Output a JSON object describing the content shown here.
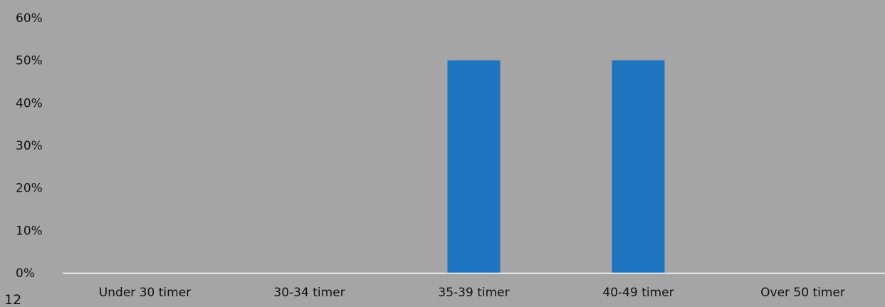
{
  "slide_number": "12",
  "colors": {
    "background": "#a5a5a5",
    "bar": "#1f74bf",
    "axis": "#ffffff",
    "text": "#111111"
  },
  "chart_data": {
    "type": "bar",
    "categories": [
      "Under 30 timer",
      "30-34 timer",
      "35-39 timer",
      "40-49 timer",
      "Over 50 timer"
    ],
    "values": [
      0,
      0,
      50,
      50,
      0
    ],
    "y_ticks": [
      "0%",
      "10%",
      "20%",
      "30%",
      "40%",
      "50%",
      "60%"
    ],
    "ylim": [
      0,
      60
    ],
    "unit": "%",
    "title": "",
    "xlabel": "",
    "ylabel": "",
    "grid": false,
    "legend": "none"
  }
}
